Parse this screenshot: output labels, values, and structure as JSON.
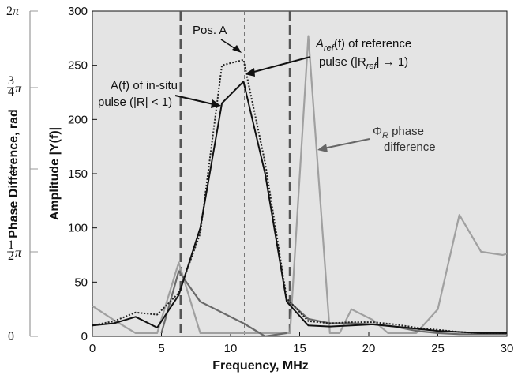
{
  "chart_data": {
    "type": "line",
    "xlabel": "Frequency, MHz",
    "ylabel": "Amplitude |Y(f)|",
    "y2label": "Phase Difference, rad",
    "xlim": [
      0,
      30
    ],
    "ylim": [
      0,
      300
    ],
    "x_ticks": [
      "0",
      "5",
      "10",
      "15",
      "20",
      "25",
      "30"
    ],
    "y_ticks": [
      "0",
      "50",
      "100",
      "150",
      "200",
      "250",
      "300"
    ],
    "y2_ticks": [
      "0",
      "1/2 π",
      "π",
      "3/4 π",
      "2π"
    ],
    "grid": false,
    "vertical_markers": [
      {
        "x": 6.4,
        "style": "dashed-thick"
      },
      {
        "x": 11.0,
        "style": "dashed-thin"
      },
      {
        "x": 14.3,
        "style": "dashed-thick"
      }
    ],
    "series": [
      {
        "style": "solid-black",
        "x": [
          0,
          1.56,
          3.13,
          4.69,
          6.25,
          7.81,
          9.38,
          10.94,
          12.5,
          14.06,
          15.63,
          17.19,
          18.75,
          20.31,
          21.88,
          23.44,
          25,
          26.56,
          28.13,
          29.69,
          31
        ],
        "y": [
          10,
          12,
          18,
          8,
          38,
          100,
          215,
          235,
          150,
          32,
          10,
          9,
          10,
          11,
          9,
          7,
          5,
          4,
          3,
          3,
          3
        ]
      },
      {
        "style": "dotted-black",
        "x": [
          0,
          1.56,
          3.13,
          4.69,
          6.25,
          7.81,
          9.38,
          10.94,
          12.5,
          14.06,
          15.63,
          17.19,
          18.75,
          20.31,
          21.88,
          23.44,
          25,
          26.56,
          28.13,
          29.69,
          31
        ],
        "y": [
          10,
          14,
          22,
          20,
          40,
          95,
          250,
          255,
          160,
          35,
          14,
          12,
          13,
          13,
          11,
          8,
          6,
          4,
          3,
          3,
          3
        ]
      },
      {
        "style": "solid-gray",
        "x": [
          0,
          1.56,
          3.13,
          4.69,
          6.25,
          7.81,
          9.38,
          10.94,
          12.5,
          14.06,
          14.3,
          15.63,
          17.19,
          17.9,
          18.75,
          20.31,
          21.4,
          23.44,
          25,
          26.56,
          28.13,
          29.69,
          31
        ],
        "y": [
          28,
          15,
          3,
          3,
          68,
          3,
          3,
          3,
          3,
          3,
          3,
          277,
          3,
          3,
          25,
          15,
          3,
          3,
          25,
          112,
          78,
          75,
          80
        ]
      },
      {
        "style": "solid-darkgray",
        "x": [
          5.0,
          6.25,
          7.81,
          9.38,
          10.94,
          12.5,
          14.06
        ],
        "y": [
          3,
          60,
          32,
          22,
          12,
          0,
          3
        ]
      },
      {
        "style": "solid-darkgray",
        "x": [
          14.06,
          15.63,
          17.19,
          18.75,
          20.31,
          21.88,
          23.44,
          25,
          26.56,
          28.13,
          29.69,
          31
        ],
        "y": [
          34,
          16,
          12,
          12,
          11,
          9,
          5,
          3,
          2,
          2,
          2,
          2
        ]
      }
    ]
  },
  "annotations": {
    "pos_a": "Pos. A",
    "aref_line1": "A",
    "aref_sub": "ref",
    "aref_line1_rest": "(f) of reference",
    "aref_line2": "pulse (|R",
    "aref_line2_sub": "ref",
    "aref_line2_rest": "| → 1)",
    "a_line1": "A(f) of in-situ",
    "a_line2": "pulse (|R| < 1)",
    "phi_line1": "Φ",
    "phi_sub": "R",
    "phi_line1_rest": " phase",
    "phi_line2": "difference"
  }
}
